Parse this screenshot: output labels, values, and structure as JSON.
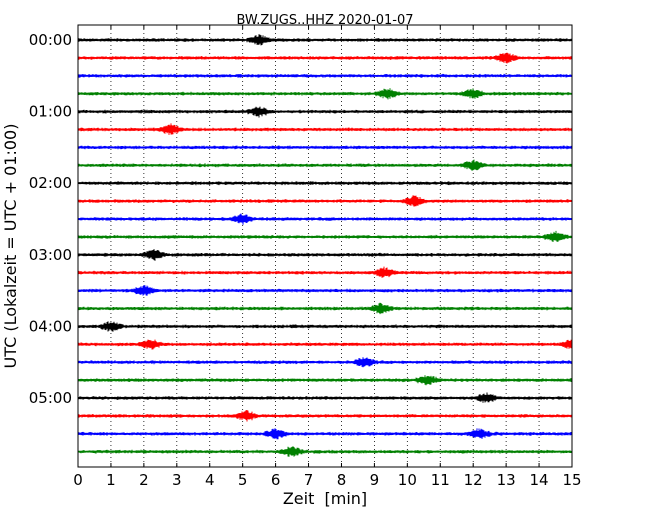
{
  "chart_data": {
    "type": "line",
    "title": "BW.ZUGS..HHZ 2020-01-07",
    "xlabel": "Zeit  [min]",
    "ylabel": "UTC (Lokalzeit = UTC + 01:00)",
    "xlim": [
      0,
      15
    ],
    "x_ticks": [
      "0",
      "1",
      "2",
      "3",
      "4",
      "5",
      "6",
      "7",
      "8",
      "9",
      "10",
      "11",
      "12",
      "13",
      "14",
      "15"
    ],
    "y_ticks": [
      "00:00",
      "01:00",
      "02:00",
      "03:00",
      "04:00",
      "05:00"
    ],
    "grid": "vertical dotted",
    "trace_colors": [
      "#000000",
      "#ff0000",
      "#0000ff",
      "#008000"
    ],
    "traces": [
      {
        "label": "00:00",
        "events": [
          5.5
        ]
      },
      {
        "label": "00:15",
        "events": [
          13.0
        ]
      },
      {
        "label": "00:30",
        "events": []
      },
      {
        "label": "00:45",
        "events": [
          9.4,
          12.0
        ]
      },
      {
        "label": "01:00",
        "events": [
          5.5
        ]
      },
      {
        "label": "01:15",
        "events": [
          2.8
        ]
      },
      {
        "label": "01:30",
        "events": []
      },
      {
        "label": "01:45",
        "events": [
          12.0
        ]
      },
      {
        "label": "02:00",
        "events": []
      },
      {
        "label": "02:15",
        "events": [
          10.2
        ]
      },
      {
        "label": "02:30",
        "events": [
          5.0
        ]
      },
      {
        "label": "02:45",
        "events": [
          14.5
        ]
      },
      {
        "label": "03:00",
        "events": [
          2.3
        ]
      },
      {
        "label": "03:15",
        "events": [
          9.3
        ]
      },
      {
        "label": "03:30",
        "events": [
          2.0
        ]
      },
      {
        "label": "03:45",
        "events": [
          9.2
        ]
      },
      {
        "label": "04:00",
        "events": [
          1.0
        ]
      },
      {
        "label": "04:15",
        "events": [
          2.2,
          15.0
        ]
      },
      {
        "label": "04:30",
        "events": [
          8.7
        ]
      },
      {
        "label": "04:45",
        "events": [
          10.6
        ]
      },
      {
        "label": "05:00",
        "events": [
          12.4
        ]
      },
      {
        "label": "05:15",
        "events": [
          5.1
        ]
      },
      {
        "label": "05:30",
        "events": [
          6.0,
          12.2
        ]
      },
      {
        "label": "05:45",
        "events": [
          6.5
        ]
      }
    ]
  }
}
